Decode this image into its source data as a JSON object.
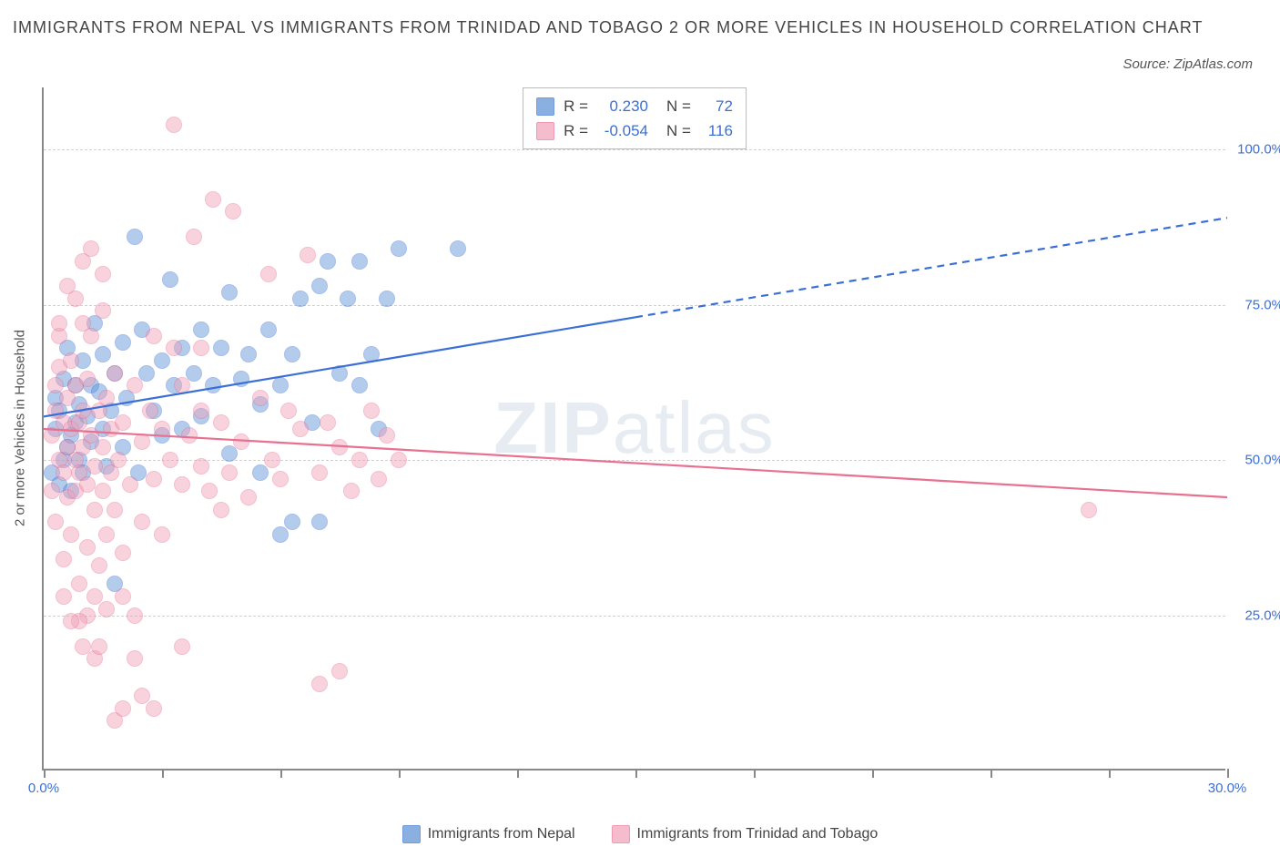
{
  "title": "IMMIGRANTS FROM NEPAL VS IMMIGRANTS FROM TRINIDAD AND TOBAGO 2 OR MORE VEHICLES IN HOUSEHOLD CORRELATION CHART",
  "source": "Source: ZipAtlas.com",
  "y_axis_label": "2 or more Vehicles in Household",
  "watermark_a": "ZIP",
  "watermark_b": "atlas",
  "chart": {
    "type": "scatter",
    "xlim": [
      0,
      30
    ],
    "ylim": [
      0,
      110
    ],
    "x_ticks": [
      0,
      3,
      6,
      9,
      12,
      15,
      18,
      21,
      24,
      27,
      30
    ],
    "x_tick_labels": {
      "0": "0.0%",
      "30": "30.0%"
    },
    "y_grid": [
      25,
      50,
      75,
      100
    ],
    "y_tick_labels": {
      "25": "25.0%",
      "50": "50.0%",
      "75": "75.0%",
      "100": "100.0%"
    },
    "background_color": "#ffffff",
    "grid_color": "#d0d0d0",
    "axis_color": "#888888",
    "tick_label_color": "#3b6fd6",
    "point_radius": 9,
    "point_opacity": 0.45,
    "series": [
      {
        "key": "nepal",
        "label": "Immigrants from Nepal",
        "color": "#5a8fd6",
        "stroke": "#3b6fd6",
        "r_label": "R =",
        "r_value": "0.230",
        "n_label": "N =",
        "n_value": "72",
        "trend": {
          "x1": 0,
          "y1": 57,
          "x2_solid": 15,
          "y2_solid": 73,
          "x2": 30,
          "y2": 89,
          "width": 2.2
        },
        "points": [
          [
            0.2,
            48
          ],
          [
            0.3,
            55
          ],
          [
            0.3,
            60
          ],
          [
            0.4,
            46
          ],
          [
            0.4,
            58
          ],
          [
            0.5,
            50
          ],
          [
            0.5,
            63
          ],
          [
            0.6,
            52
          ],
          [
            0.6,
            68
          ],
          [
            0.7,
            54
          ],
          [
            0.7,
            45
          ],
          [
            0.8,
            62
          ],
          [
            0.8,
            56
          ],
          [
            0.9,
            59
          ],
          [
            0.9,
            50
          ],
          [
            1.0,
            66
          ],
          [
            1.0,
            48
          ],
          [
            1.1,
            57
          ],
          [
            1.2,
            62
          ],
          [
            1.2,
            53
          ],
          [
            1.3,
            72
          ],
          [
            1.4,
            61
          ],
          [
            1.5,
            67
          ],
          [
            1.5,
            55
          ],
          [
            1.6,
            49
          ],
          [
            1.7,
            58
          ],
          [
            1.8,
            64
          ],
          [
            1.8,
            30
          ],
          [
            2.0,
            69
          ],
          [
            2.0,
            52
          ],
          [
            2.1,
            60
          ],
          [
            2.3,
            86
          ],
          [
            2.4,
            48
          ],
          [
            2.5,
            71
          ],
          [
            2.6,
            64
          ],
          [
            2.8,
            58
          ],
          [
            3.0,
            66
          ],
          [
            3.0,
            54
          ],
          [
            3.2,
            79
          ],
          [
            3.3,
            62
          ],
          [
            3.5,
            55
          ],
          [
            3.5,
            68
          ],
          [
            3.8,
            64
          ],
          [
            4.0,
            71
          ],
          [
            4.0,
            57
          ],
          [
            4.3,
            62
          ],
          [
            4.5,
            68
          ],
          [
            4.7,
            77
          ],
          [
            4.7,
            51
          ],
          [
            5.0,
            63
          ],
          [
            5.2,
            67
          ],
          [
            5.5,
            59
          ],
          [
            5.7,
            71
          ],
          [
            6.0,
            62
          ],
          [
            6.0,
            38
          ],
          [
            6.3,
            67
          ],
          [
            6.5,
            76
          ],
          [
            6.8,
            56
          ],
          [
            7.0,
            78
          ],
          [
            7.0,
            40
          ],
          [
            7.2,
            82
          ],
          [
            7.5,
            64
          ],
          [
            7.7,
            76
          ],
          [
            8.0,
            62
          ],
          [
            8.0,
            82
          ],
          [
            8.3,
            67
          ],
          [
            8.5,
            55
          ],
          [
            8.7,
            76
          ],
          [
            9.0,
            84
          ],
          [
            6.3,
            40
          ],
          [
            10.5,
            84
          ],
          [
            5.5,
            48
          ]
        ]
      },
      {
        "key": "trinidad",
        "label": "Immigrants from Trinidad and Tobago",
        "color": "#f0a0b8",
        "stroke": "#e87090",
        "r_label": "R =",
        "r_value": "-0.054",
        "n_label": "N =",
        "n_value": "116",
        "trend": {
          "x1": 0,
          "y1": 55,
          "x2_solid": 30,
          "y2_solid": 44,
          "x2": 30,
          "y2": 44,
          "width": 2.2
        },
        "points": [
          [
            0.2,
            54
          ],
          [
            0.2,
            45
          ],
          [
            0.3,
            58
          ],
          [
            0.3,
            62
          ],
          [
            0.3,
            40
          ],
          [
            0.4,
            65
          ],
          [
            0.4,
            50
          ],
          [
            0.4,
            70
          ],
          [
            0.5,
            56
          ],
          [
            0.5,
            48
          ],
          [
            0.5,
            34
          ],
          [
            0.6,
            60
          ],
          [
            0.6,
            52
          ],
          [
            0.6,
            44
          ],
          [
            0.7,
            66
          ],
          [
            0.7,
            55
          ],
          [
            0.7,
            38
          ],
          [
            0.8,
            50
          ],
          [
            0.8,
            62
          ],
          [
            0.8,
            45
          ],
          [
            0.9,
            56
          ],
          [
            0.9,
            48
          ],
          [
            0.9,
            30
          ],
          [
            1.0,
            58
          ],
          [
            1.0,
            52
          ],
          [
            1.0,
            20
          ],
          [
            1.1,
            63
          ],
          [
            1.1,
            46
          ],
          [
            1.1,
            36
          ],
          [
            1.2,
            54
          ],
          [
            1.2,
            70
          ],
          [
            1.3,
            49
          ],
          [
            1.3,
            42
          ],
          [
            1.3,
            18
          ],
          [
            1.4,
            58
          ],
          [
            1.4,
            33
          ],
          [
            1.5,
            52
          ],
          [
            1.5,
            45
          ],
          [
            1.5,
            80
          ],
          [
            1.6,
            60
          ],
          [
            1.6,
            38
          ],
          [
            1.7,
            48
          ],
          [
            1.7,
            55
          ],
          [
            1.8,
            42
          ],
          [
            1.8,
            64
          ],
          [
            1.8,
            8
          ],
          [
            1.9,
            50
          ],
          [
            2.0,
            56
          ],
          [
            2.0,
            35
          ],
          [
            2.0,
            10
          ],
          [
            2.2,
            46
          ],
          [
            2.3,
            62
          ],
          [
            2.3,
            18
          ],
          [
            2.5,
            53
          ],
          [
            2.5,
            40
          ],
          [
            2.5,
            12
          ],
          [
            2.7,
            58
          ],
          [
            2.8,
            47
          ],
          [
            2.8,
            10
          ],
          [
            3.0,
            55
          ],
          [
            3.0,
            38
          ],
          [
            3.2,
            50
          ],
          [
            3.3,
            104
          ],
          [
            3.5,
            46
          ],
          [
            3.5,
            62
          ],
          [
            3.7,
            54
          ],
          [
            3.8,
            86
          ],
          [
            4.0,
            49
          ],
          [
            4.0,
            58
          ],
          [
            4.2,
            45
          ],
          [
            4.3,
            92
          ],
          [
            4.5,
            56
          ],
          [
            4.7,
            48
          ],
          [
            4.8,
            90
          ],
          [
            5.0,
            53
          ],
          [
            5.2,
            44
          ],
          [
            5.5,
            60
          ],
          [
            5.7,
            80
          ],
          [
            5.8,
            50
          ],
          [
            6.0,
            47
          ],
          [
            6.2,
            58
          ],
          [
            6.5,
            55
          ],
          [
            6.7,
            83
          ],
          [
            7.0,
            48
          ],
          [
            7.0,
            14
          ],
          [
            7.2,
            56
          ],
          [
            7.5,
            52
          ],
          [
            7.5,
            16
          ],
          [
            7.8,
            45
          ],
          [
            8.0,
            50
          ],
          [
            8.3,
            58
          ],
          [
            8.5,
            47
          ],
          [
            8.7,
            54
          ],
          [
            9.0,
            50
          ],
          [
            1.0,
            82
          ],
          [
            1.2,
            84
          ],
          [
            0.6,
            78
          ],
          [
            0.8,
            76
          ],
          [
            1.5,
            74
          ],
          [
            1.0,
            72
          ],
          [
            0.4,
            72
          ],
          [
            1.3,
            28
          ],
          [
            1.6,
            26
          ],
          [
            2.0,
            28
          ],
          [
            1.1,
            25
          ],
          [
            0.5,
            28
          ],
          [
            0.9,
            24
          ],
          [
            1.4,
            20
          ],
          [
            2.3,
            25
          ],
          [
            0.7,
            24
          ],
          [
            26.5,
            42
          ],
          [
            2.8,
            70
          ],
          [
            3.3,
            68
          ],
          [
            4.0,
            68
          ],
          [
            3.5,
            20
          ],
          [
            4.5,
            42
          ]
        ]
      }
    ]
  }
}
